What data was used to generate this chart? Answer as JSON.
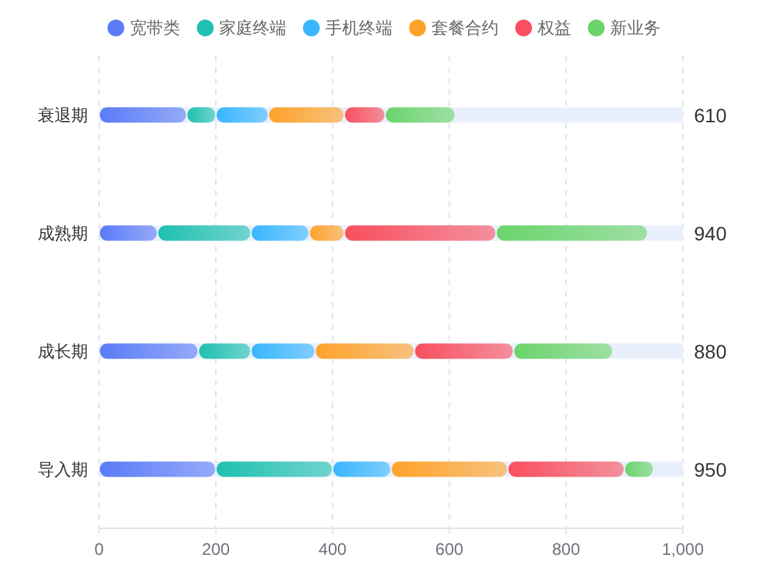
{
  "chart_data": {
    "type": "bar",
    "orientation": "horizontal",
    "stacked": true,
    "categories": [
      "衰退期",
      "成熟期",
      "成长期",
      "导入期"
    ],
    "series": [
      {
        "name": "宽带类",
        "color": "#5b7bf7",
        "values": [
          150,
          100,
          170,
          200
        ]
      },
      {
        "name": "家庭终端",
        "color": "#1fc0b0",
        "values": [
          50,
          160,
          90,
          200
        ]
      },
      {
        "name": "手机终端",
        "color": "#38b6ff",
        "values": [
          90,
          100,
          110,
          100
        ]
      },
      {
        "name": "套餐合约",
        "color": "#ffa229",
        "values": [
          130,
          60,
          170,
          200
        ]
      },
      {
        "name": "权益",
        "color": "#f94f5e",
        "values": [
          70,
          260,
          170,
          200
        ]
      },
      {
        "name": "新业务",
        "color": "#6bd46b",
        "values": [
          120,
          260,
          170,
          50
        ]
      }
    ],
    "annotations": [
      "610",
      "940",
      "880",
      "950"
    ],
    "xlim": [
      0,
      1000
    ],
    "xticks": [
      0,
      200,
      400,
      600,
      800,
      {
        "value": 1000,
        "label": "1,000"
      }
    ],
    "grid": "x",
    "legend": "top"
  }
}
